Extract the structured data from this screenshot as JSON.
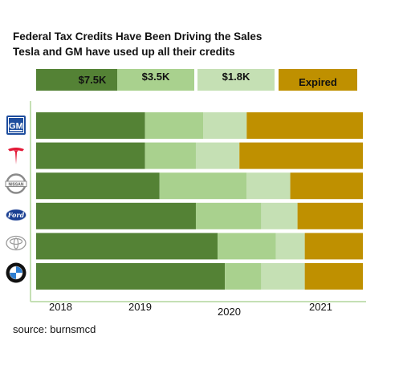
{
  "title_line1": "Federal Tax Credits Have Been Driving the Sales",
  "title_line2": "Tesla and GM have used up all their credits",
  "source": "source:  burnsmcd",
  "colors": {
    "full": "#548235",
    "half": "#a9d18e",
    "quarter": "#c5e0b4",
    "expired": "#bf9000",
    "axis": "#c5e0b4"
  },
  "legend": [
    {
      "label": "$7.5K",
      "color": "#548235"
    },
    {
      "label": "$3.5K",
      "color": "#a9d18e"
    },
    {
      "label": "$1.8K",
      "color": "#c5e0b4"
    },
    {
      "label": "Expired",
      "color": "#bf9000"
    }
  ],
  "chart_data": {
    "type": "bar",
    "orientation": "horizontal",
    "stacked": true,
    "categories": [
      "GM",
      "Tesla",
      "Nissan",
      "Ford",
      "Toyota",
      "BMW"
    ],
    "category_display": "brand logos",
    "xaxis": {
      "type": "time",
      "ticks": [
        "2018",
        "2019",
        "2020",
        "2021"
      ],
      "range": [
        "2017-10",
        "2021-07"
      ]
    },
    "series": [
      {
        "name": "$7.5K",
        "color": "#548235",
        "values": [
          [
            "2017-10",
            "2019-01"
          ],
          [
            "2017-10",
            "2019-01"
          ],
          [
            "2017-10",
            "2019-03"
          ],
          [
            "2017-10",
            "2019-08"
          ],
          [
            "2017-10",
            "2019-11"
          ],
          [
            "2017-10",
            "2019-12"
          ]
        ]
      },
      {
        "name": "$3.5K",
        "color": "#a9d18e",
        "values": [
          [
            "2019-01",
            "2019-09"
          ],
          [
            "2019-01",
            "2019-08"
          ],
          [
            "2019-03",
            "2020-03"
          ],
          [
            "2019-08",
            "2020-05"
          ],
          [
            "2019-11",
            "2020-07"
          ],
          [
            "2019-12",
            "2020-05"
          ]
        ]
      },
      {
        "name": "$1.8K",
        "color": "#c5e0b4",
        "values": [
          [
            "2019-09",
            "2020-03"
          ],
          [
            "2019-08",
            "2020-02"
          ],
          [
            "2020-03",
            "2020-09"
          ],
          [
            "2020-05",
            "2020-10"
          ],
          [
            "2020-07",
            "2020-11"
          ],
          [
            "2020-05",
            "2020-11"
          ]
        ]
      },
      {
        "name": "Expired",
        "color": "#bf9000",
        "values": [
          [
            "2020-03",
            "2021-07"
          ],
          [
            "2020-02",
            "2021-07"
          ],
          [
            "2020-09",
            "2021-07"
          ],
          [
            "2020-10",
            "2021-07"
          ],
          [
            "2020-11",
            "2021-07"
          ],
          [
            "2020-11",
            "2021-07"
          ]
        ]
      }
    ]
  },
  "logos": [
    {
      "name": "gm-logo",
      "text": "GM"
    },
    {
      "name": "tesla-logo"
    },
    {
      "name": "nissan-logo",
      "text": "NISSAN"
    },
    {
      "name": "ford-logo",
      "text": "Ford"
    },
    {
      "name": "toyota-logo"
    },
    {
      "name": "bmw-logo"
    }
  ]
}
